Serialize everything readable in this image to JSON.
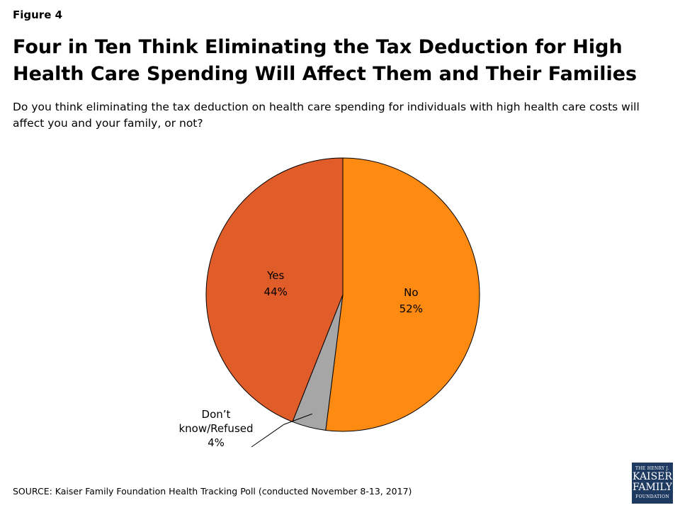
{
  "figure_label": "Figure 4",
  "title": "Four in Ten Think Eliminating the Tax Deduction for High Health Care Spending Will Affect Them and Their Families",
  "subtitle": "Do you think eliminating the tax deduction on health care spending for individuals with high health care costs will affect you and your family, or not?",
  "source": "SOURCE: Kaiser Family Foundation Health Tracking Poll (conducted November 8-13, 2017)",
  "logo": {
    "line1": "THE HENRY J.",
    "line2": "KAISER",
    "line3": "FAMILY",
    "line4": "FOUNDATION"
  },
  "chart_data": {
    "type": "pie",
    "title": "",
    "start_angle_deg": 0,
    "direction": "clockwise",
    "slices": [
      {
        "label": "No",
        "value": 52,
        "display": "52%",
        "color": "#ff8a12"
      },
      {
        "label": "Don’t know/Refused",
        "label_lines": [
          "Don’t",
          "know/Refused"
        ],
        "value": 4,
        "display": "4%",
        "color": "#a6a6a6"
      },
      {
        "label": "Yes",
        "value": 44,
        "display": "44%",
        "color": "#e05c28"
      }
    ]
  }
}
